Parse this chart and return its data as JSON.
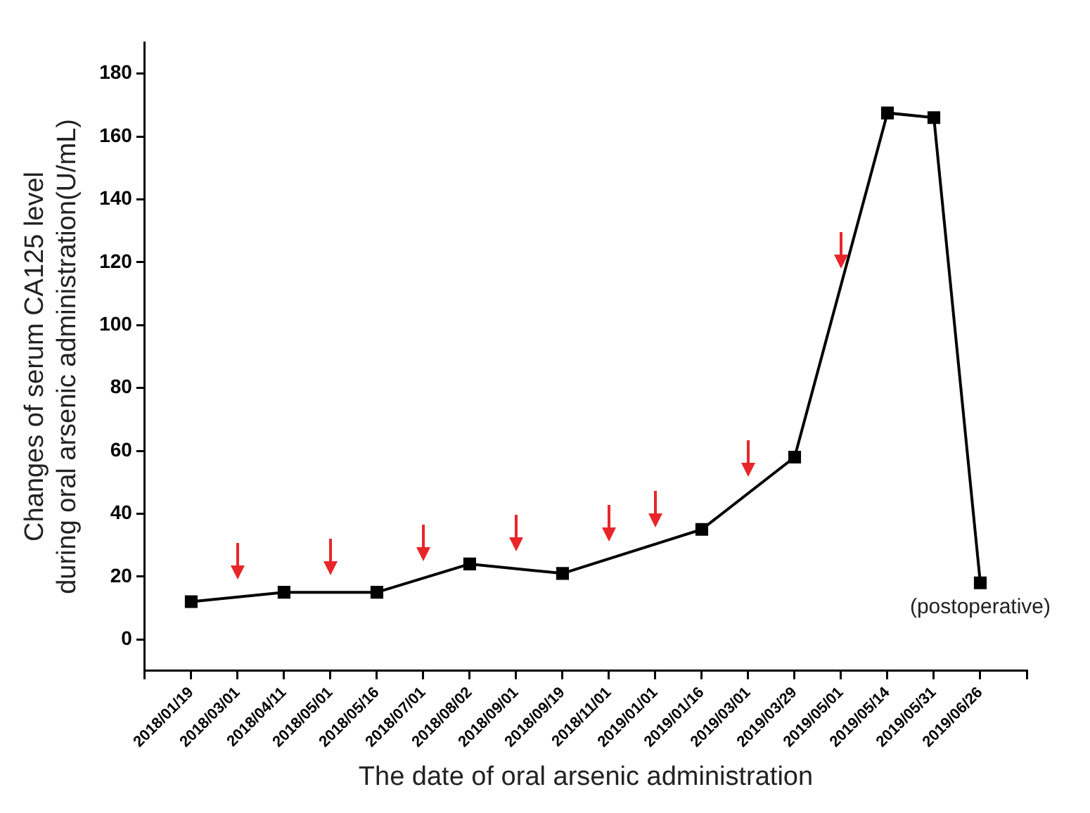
{
  "chart_data": {
    "type": "line",
    "xlabel": "The date of oral arsenic administration",
    "ylabel": "Changes of serum CA125 level\nduring oral arsenic administration(U/mL)",
    "categories": [
      "2018/01/19",
      "2018/03/01",
      "2018/04/11",
      "2018/05/01",
      "2018/05/16",
      "2018/07/01",
      "2018/08/02",
      "2018/09/01",
      "2018/09/19",
      "2018/11/01",
      "2019/01/01",
      "2019/01/16",
      "2019/03/01",
      "2019/03/29",
      "2019/05/01",
      "2019/05/14",
      "2019/05/31",
      "2019/06/26"
    ],
    "series": [
      {
        "color": "#000000",
        "values": [
          12,
          null,
          15,
          null,
          15,
          null,
          24,
          null,
          21,
          null,
          null,
          35,
          null,
          58,
          null,
          167.5,
          166,
          18
        ]
      }
    ],
    "ylim": [
      -10,
      190
    ],
    "yticks": [
      0,
      20,
      40,
      60,
      80,
      100,
      120,
      140,
      160,
      180
    ],
    "grid": false,
    "legend": false,
    "marker": "square",
    "line_style": "solid",
    "annotations": [
      {
        "text": "(postoperative)",
        "x": "2019/06/26",
        "y": 18
      }
    ]
  }
}
